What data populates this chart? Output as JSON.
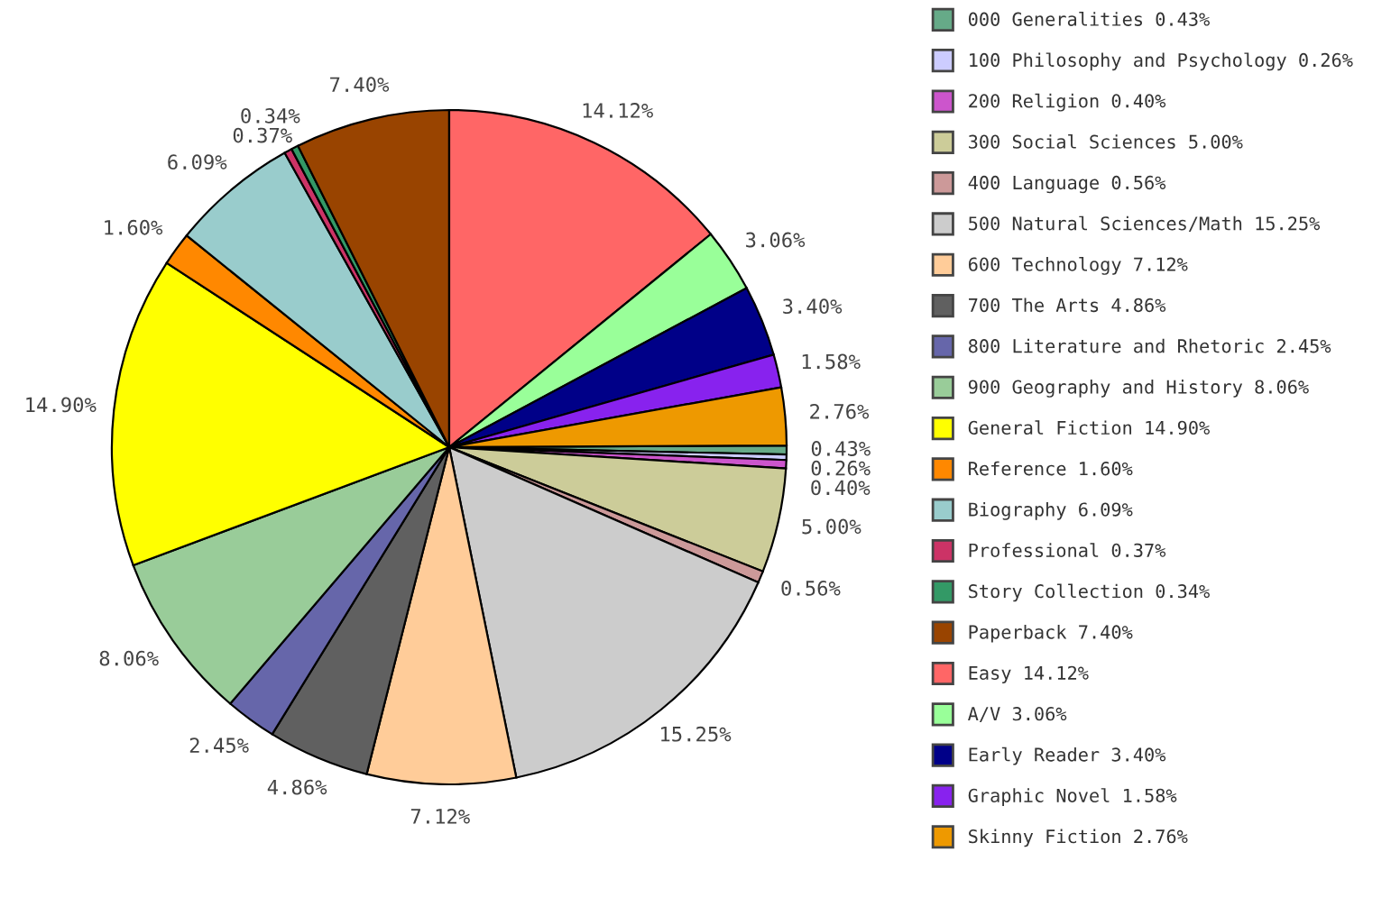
{
  "chart_data": {
    "type": "pie",
    "categories": [
      "000 Generalities",
      "100 Philosophy and Psychology",
      "200 Religion",
      "300 Social Sciences",
      "400 Language",
      "500 Natural Sciences/Math",
      "600 Technology",
      "700 The Arts",
      "800 Literature and Rhetoric",
      "900 Geography and History",
      "General Fiction",
      "Reference",
      "Biography",
      "Professional",
      "Story Collection",
      "Paperback",
      "Easy",
      "A/V",
      "Early Reader",
      "Graphic Novel",
      "Skinny Fiction"
    ],
    "values": [
      0.43,
      0.26,
      0.4,
      5.0,
      0.56,
      15.25,
      7.12,
      4.86,
      2.45,
      8.06,
      14.9,
      1.6,
      6.09,
      0.37,
      0.34,
      7.4,
      14.12,
      3.06,
      3.4,
      1.58,
      2.76
    ],
    "value_labels": [
      "0.43%",
      "0.26%",
      "0.40%",
      "5.00%",
      "0.56%",
      "15.25%",
      "7.12%",
      "4.86%",
      "2.45%",
      "8.06%",
      "14.90%",
      "1.60%",
      "6.09%",
      "0.37%",
      "0.34%",
      "7.40%",
      "14.12%",
      "3.06%",
      "3.40%",
      "1.58%",
      "2.76%"
    ],
    "colors": [
      "#66aa88",
      "#ccccff",
      "#cc55cc",
      "#cccc99",
      "#cc9999",
      "#cccccc",
      "#ffcc99",
      "#606060",
      "#6666aa",
      "#99cc99",
      "#ffff00",
      "#ff8800",
      "#99cccc",
      "#cc3366",
      "#339966",
      "#994400",
      "#ff6666",
      "#99ff99",
      "#000088",
      "#8822ee",
      "#ee9900"
    ],
    "legend": "right"
  }
}
